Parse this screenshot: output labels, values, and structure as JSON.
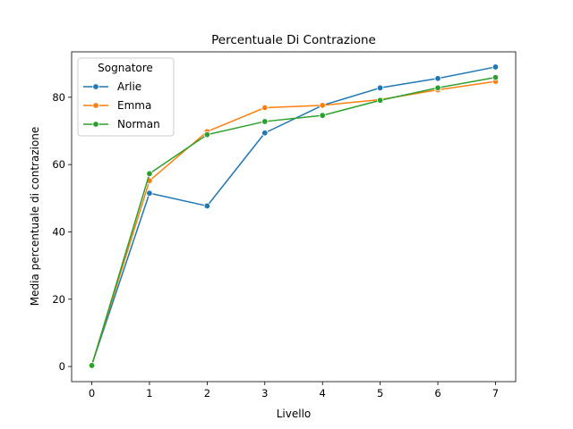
{
  "chart_data": {
    "type": "line",
    "title": "Percentuale Di Contrazione",
    "xlabel": "Livello",
    "ylabel": "Media percentuale di contrazione",
    "x": [
      0,
      1,
      2,
      3,
      4,
      5,
      6,
      7
    ],
    "xlim": [
      -0.35,
      7.35
    ],
    "ylim": [
      -4.5,
      93.5
    ],
    "xticks": [
      0,
      1,
      2,
      3,
      4,
      5,
      6,
      7
    ],
    "yticks": [
      0,
      20,
      40,
      60,
      80
    ],
    "grid": false,
    "legend": {
      "title": "Sognatore",
      "placement": "top-left"
    },
    "series": [
      {
        "name": "Arlie",
        "color": "#1f77b4",
        "values": [
          0.5,
          51.5,
          47.7,
          69.4,
          77.6,
          82.8,
          85.6,
          89.0
        ]
      },
      {
        "name": "Emma",
        "color": "#ff7f0e",
        "values": [
          0.5,
          55.2,
          69.8,
          76.9,
          77.6,
          79.3,
          82.2,
          84.7
        ]
      },
      {
        "name": "Norman",
        "color": "#2ca02c",
        "values": [
          0.3,
          57.3,
          68.9,
          72.8,
          74.6,
          79.1,
          82.8,
          85.9
        ]
      }
    ]
  }
}
